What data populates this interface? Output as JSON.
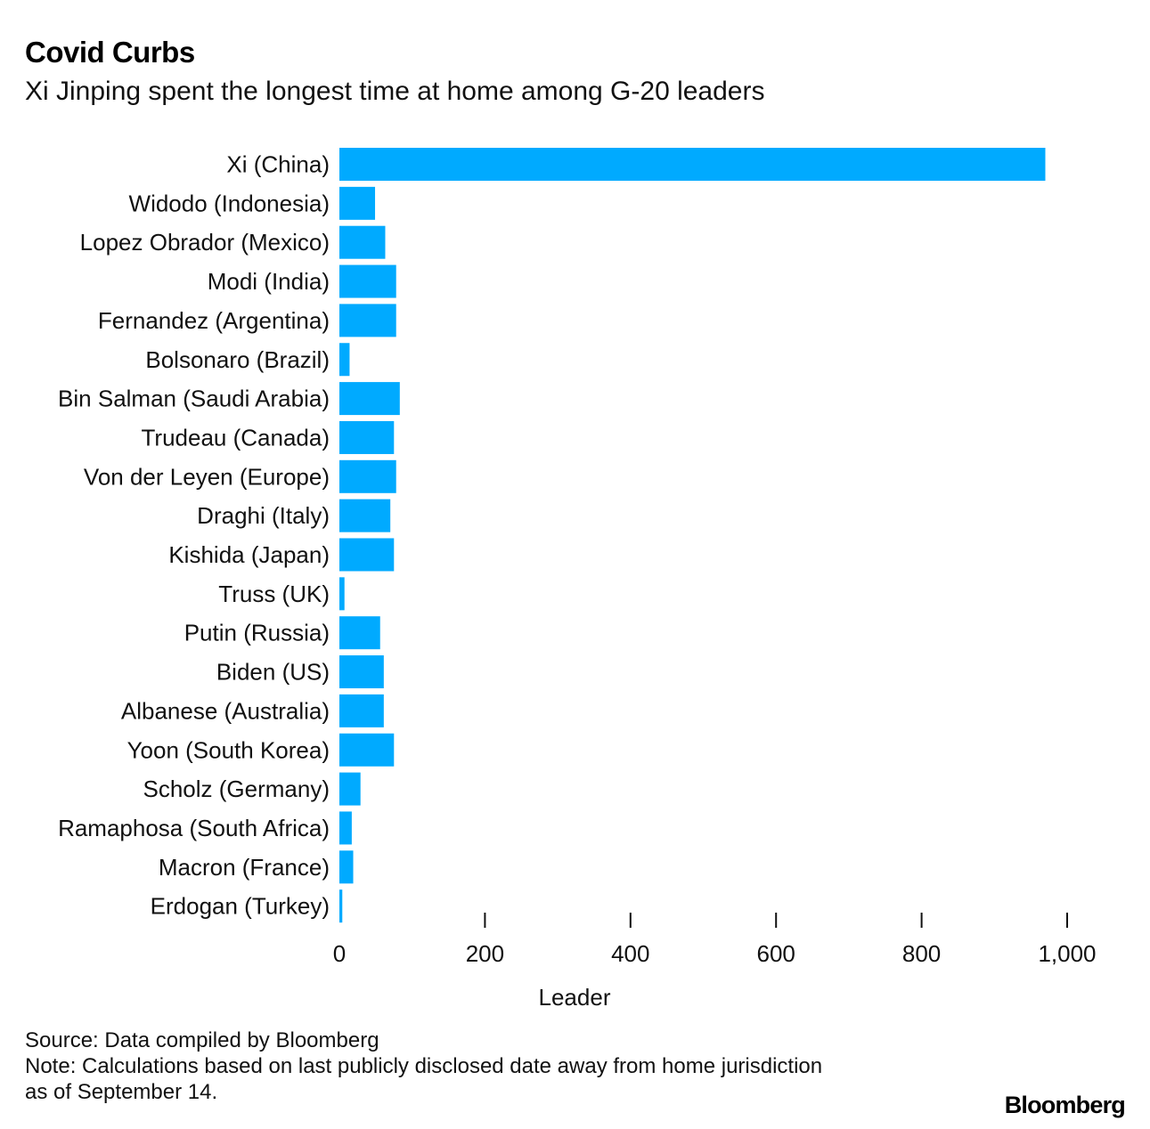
{
  "header": {
    "title": "Covid Curbs",
    "subtitle": "Xi Jinping spent the longest time at home among G-20 leaders"
  },
  "footer": {
    "source": "Source: Data compiled by Bloomberg",
    "note_line1": "Note: Calculations based on last publicly disclosed date away from home jurisdiction",
    "note_line2": "as of September 14.",
    "brand": "Bloomberg"
  },
  "colors": {
    "bar": "#00aaff",
    "tick": "#111111"
  },
  "chart_data": {
    "type": "bar",
    "orientation": "horizontal",
    "title": "Covid Curbs",
    "subtitle": "Xi Jinping spent the longest time at home among G-20 leaders",
    "xlabel": "Leader",
    "ylabel": "",
    "xlim": [
      0,
      1000
    ],
    "ticks": [
      0,
      200,
      400,
      600,
      800,
      1000
    ],
    "tick_labels": [
      "0",
      "200",
      "400",
      "600",
      "800",
      "1,000"
    ],
    "categories": [
      "Xi (China)",
      "Widodo (Indonesia)",
      "Lopez Obrador (Mexico)",
      "Modi (India)",
      "Fernandez (Argentina)",
      "Bolsonaro (Brazil)",
      "Bin Salman (Saudi Arabia)",
      "Trudeau (Canada)",
      "Von der Leyen (Europe)",
      "Draghi (Italy)",
      "Kishida (Japan)",
      "Truss (UK)",
      "Putin (Russia)",
      "Biden (US)",
      "Albanese (Australia)",
      "Yoon (South Korea)",
      "Scholz (Germany)",
      "Ramaphosa (South Africa)",
      "Macron (France)",
      "Erdogan (Turkey)"
    ],
    "values": [
      970,
      49,
      63,
      78,
      78,
      14,
      83,
      75,
      78,
      70,
      75,
      7,
      56,
      61,
      61,
      75,
      29,
      17,
      19,
      4
    ]
  }
}
